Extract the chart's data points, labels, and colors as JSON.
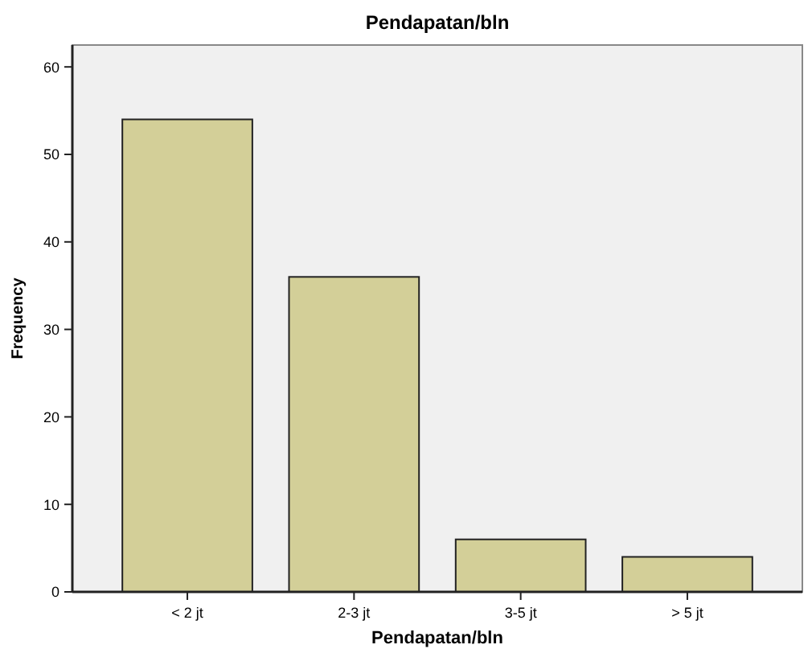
{
  "chart_data": {
    "type": "bar",
    "title": "Pendapatan/bln",
    "xlabel": "Pendapatan/bln",
    "ylabel": "Frequency",
    "categories": [
      "< 2 jt",
      "2-3 jt",
      "3-5 jt",
      "> 5 jt"
    ],
    "values": [
      54,
      36,
      6,
      4
    ],
    "color": "#d3cf98",
    "ylim": [
      0,
      62.5
    ],
    "yticks": [
      0,
      10,
      20,
      30,
      40,
      50,
      60
    ],
    "grid": false
  }
}
